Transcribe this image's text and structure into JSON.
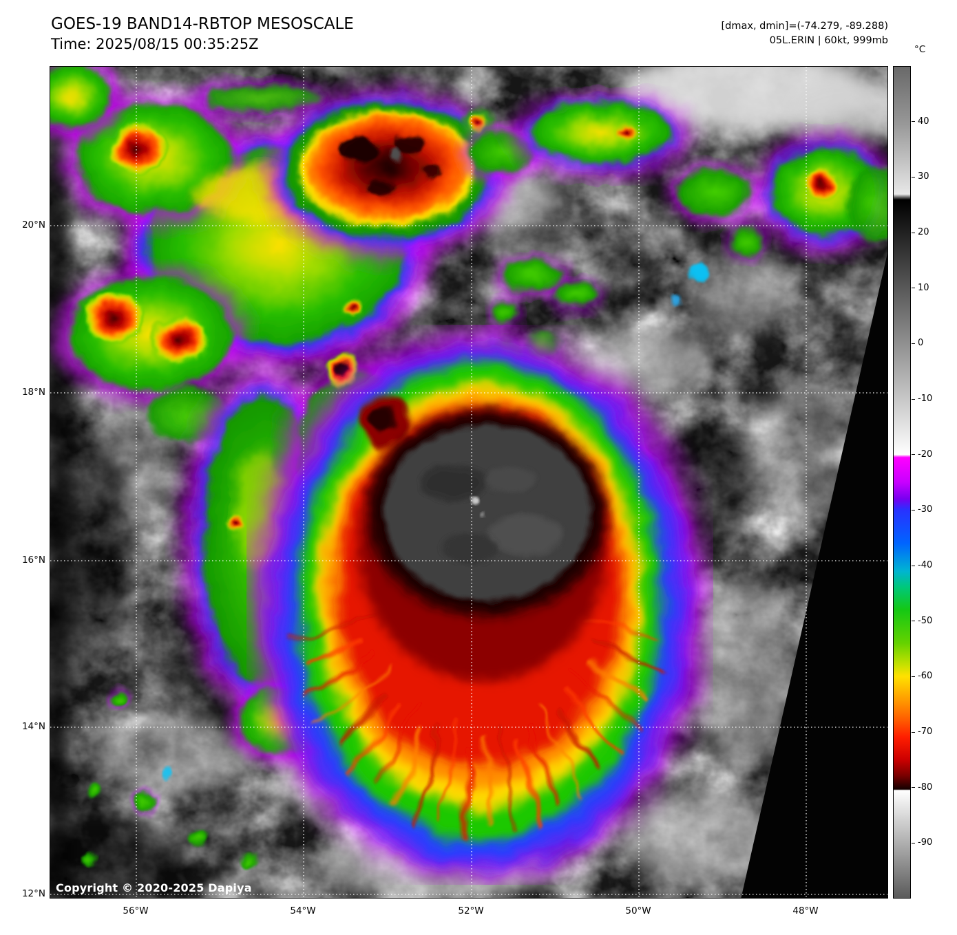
{
  "header": {
    "title": "GOES-19 BAND14-RBTOP MESOSCALE",
    "time": "Time: 2025/08/15 00:35:25Z",
    "range_info": "[dmax, dmin]=(-74.279, -89.288)",
    "storm_info": "05L.ERIN | 60kt, 999mb"
  },
  "colorbar": {
    "unit_label": "°C",
    "value_range": [
      50,
      -100
    ],
    "tick_values": [
      40,
      30,
      20,
      10,
      0,
      -10,
      -20,
      -30,
      -40,
      -50,
      -60,
      -70,
      -80,
      -90
    ],
    "stops": [
      {
        "t": 50,
        "c": "#696969"
      },
      {
        "t": 40,
        "c": "#969696"
      },
      {
        "t": 27,
        "c": "#e8e8e8"
      },
      {
        "t": 26,
        "c": "#000000"
      },
      {
        "t": -20,
        "c": "#ffffff"
      },
      {
        "t": -20.5,
        "c": "#ff00ff"
      },
      {
        "t": -25,
        "c": "#c800ff"
      },
      {
        "t": -28,
        "c": "#7800f0"
      },
      {
        "t": -30,
        "c": "#2832ff"
      },
      {
        "t": -36,
        "c": "#0064ff"
      },
      {
        "t": -41,
        "c": "#00b4d2"
      },
      {
        "t": -44,
        "c": "#00c878"
      },
      {
        "t": -48,
        "c": "#14c814"
      },
      {
        "t": -54,
        "c": "#64d200"
      },
      {
        "t": -58,
        "c": "#c8e100"
      },
      {
        "t": -60,
        "c": "#ffe100"
      },
      {
        "t": -64,
        "c": "#ffa000"
      },
      {
        "t": -68,
        "c": "#ff5a00"
      },
      {
        "t": -71,
        "c": "#ff1e00"
      },
      {
        "t": -75,
        "c": "#cd0000"
      },
      {
        "t": -78,
        "c": "#780000"
      },
      {
        "t": -80.4,
        "c": "#140000"
      },
      {
        "t": -80.6,
        "c": "#ffffff"
      },
      {
        "t": -90,
        "c": "#b0b0b0"
      },
      {
        "t": -100,
        "c": "#5a5a5a"
      }
    ]
  },
  "axes": {
    "lat_labels": [
      "20°N",
      "18°N",
      "16°N",
      "14°N",
      "12°N"
    ],
    "lon_labels": [
      "56°W",
      "54°W",
      "52°W",
      "50°W",
      "48°W"
    ],
    "lat_values": [
      20,
      18,
      16,
      14,
      12
    ],
    "lon_values": [
      56,
      54,
      52,
      50,
      48
    ]
  },
  "map": {
    "copyright": "Copyright © 2020-2025 Dapiya",
    "storm_center_color": "#3f3f3f",
    "grid_color": "#ffffff"
  }
}
